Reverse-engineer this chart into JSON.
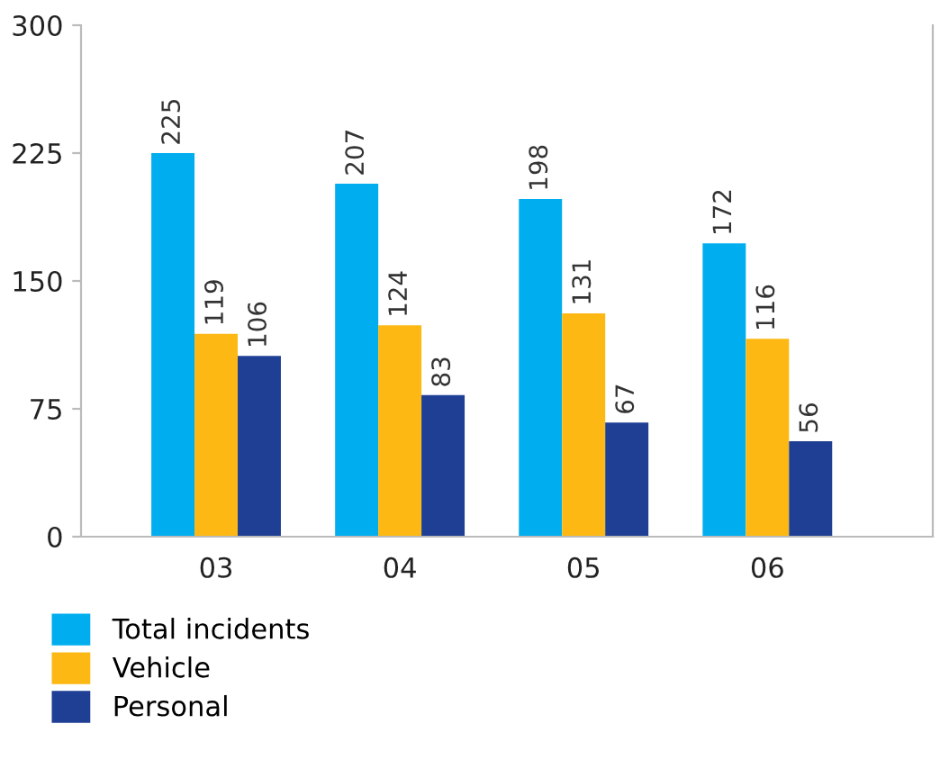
{
  "chart_data": {
    "type": "bar",
    "categories": [
      "03",
      "04",
      "05",
      "06"
    ],
    "series": [
      {
        "name": "Total incidents",
        "color": "#00aeef",
        "values": [
          225,
          207,
          198,
          172
        ]
      },
      {
        "name": "Vehicle",
        "color": "#fdb813",
        "values": [
          119,
          124,
          131,
          116
        ]
      },
      {
        "name": "Personal",
        "color": "#1e3f94",
        "values": [
          106,
          83,
          67,
          56
        ]
      }
    ],
    "ylim": [
      0,
      300
    ],
    "yticks": [
      0,
      75,
      150,
      225,
      300
    ],
    "grid": false,
    "legend": "bottom left",
    "data_labels": true
  }
}
